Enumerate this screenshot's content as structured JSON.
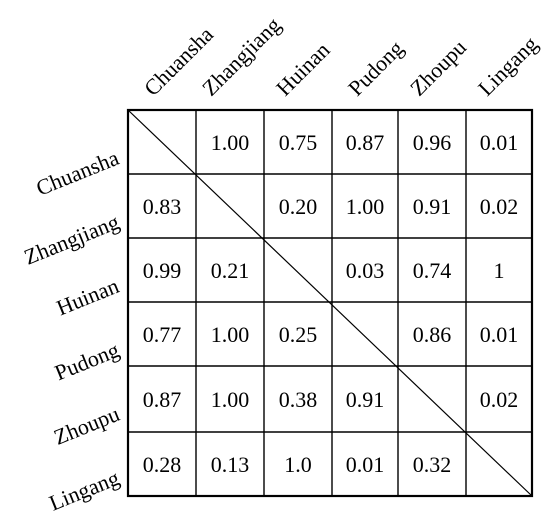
{
  "columns": [
    "Chuansha",
    "Zhangjiang",
    "Huinan",
    "Pudong",
    "Zhoupu",
    "Lingang"
  ],
  "rows": [
    "Chuansha",
    "Zhangjiang",
    "Huinan",
    "Pudong",
    "Zhoupu",
    "Lingang"
  ],
  "matrix": [
    [
      "",
      "1.00",
      "0.75",
      "0.87",
      "0.96",
      "0.01"
    ],
    [
      "0.83",
      "",
      "0.20",
      "1.00",
      "0.91",
      "0.02"
    ],
    [
      "0.99",
      "0.21",
      "",
      "0.03",
      "0.74",
      "1"
    ],
    [
      "0.77",
      "1.00",
      "0.25",
      "",
      "0.86",
      "0.01"
    ],
    [
      "0.87",
      "1.00",
      "0.38",
      "0.91",
      "",
      "0.02"
    ],
    [
      "0.28",
      "0.13",
      "1.0",
      "0.01",
      "0.32",
      ""
    ]
  ]
}
